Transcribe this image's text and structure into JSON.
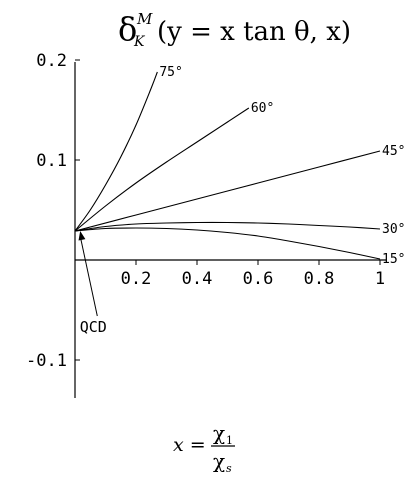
{
  "chart_data": {
    "type": "line",
    "title": {
      "delta": "δ",
      "sup": "M",
      "sub": "K",
      "args": "(y = x tan θ, x)"
    },
    "xlabel": {
      "lhs": "x =",
      "num": "χ",
      "num_sub": "1",
      "den": "χ",
      "den_sub": "s"
    },
    "xlim": [
      0,
      1.0
    ],
    "ylim": [
      -0.1,
      0.2
    ],
    "x_ticks": [
      0.2,
      0.4,
      0.6,
      0.8,
      1.0
    ],
    "x_tick_labels": [
      "0.2",
      "0.4",
      "0.6",
      "0.8",
      "1"
    ],
    "y_ticks": [
      -0.1,
      0.1,
      0.2
    ],
    "y_tick_labels": [
      "-0.1",
      "0.1",
      "0.2"
    ],
    "series": [
      {
        "name": "15°",
        "x": [
          0,
          0.1,
          0.2,
          0.3,
          0.4,
          0.5,
          0.6,
          0.7,
          0.8,
          0.9,
          1.0
        ],
        "y": [
          0.029,
          0.0315,
          0.032,
          0.0315,
          0.03,
          0.0275,
          0.024,
          0.019,
          0.0135,
          0.0075,
          0.001
        ]
      },
      {
        "name": "30°",
        "x": [
          0,
          0.1,
          0.2,
          0.3,
          0.4,
          0.5,
          0.6,
          0.7,
          0.8,
          0.9,
          1.0
        ],
        "y": [
          0.029,
          0.0335,
          0.036,
          0.037,
          0.0375,
          0.0375,
          0.037,
          0.036,
          0.0345,
          0.033,
          0.031
        ]
      },
      {
        "name": "45°",
        "x": [
          0,
          0.2,
          0.4,
          0.6,
          0.8,
          1.0
        ],
        "y": [
          0.029,
          0.045,
          0.061,
          0.077,
          0.093,
          0.109
        ]
      },
      {
        "name": "60°",
        "x": [
          0,
          0.1,
          0.2,
          0.3,
          0.4,
          0.5,
          0.57
        ],
        "y": [
          0.029,
          0.054,
          0.077,
          0.098,
          0.118,
          0.138,
          0.152
        ]
      },
      {
        "name": "75°",
        "x": [
          0,
          0.05,
          0.1,
          0.15,
          0.2,
          0.25,
          0.27
        ],
        "y": [
          0.029,
          0.05,
          0.075,
          0.103,
          0.135,
          0.172,
          0.188
        ]
      }
    ],
    "annotations": [
      {
        "text": "QCD",
        "x": 0.06,
        "y": -0.072,
        "arrow_to": [
          0.017,
          0.029
        ]
      }
    ],
    "grid": false,
    "legend": "none"
  }
}
